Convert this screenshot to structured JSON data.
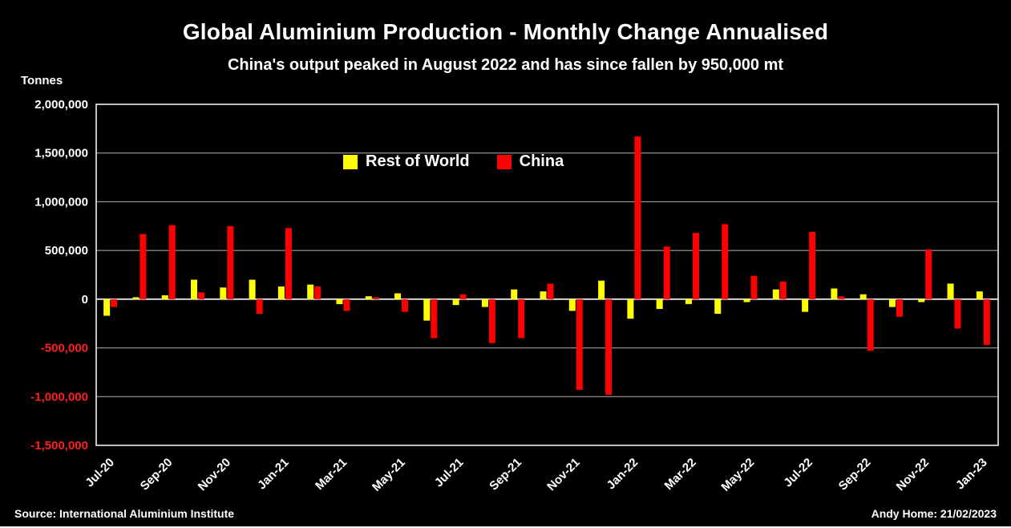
{
  "title": "Global Aluminium Production - Monthly Change Annualised",
  "subtitle": "China's output peaked in August 2022 and has since fallen by 950,000 mt",
  "y_axis_title": "Tonnes",
  "legend": [
    "Rest of World",
    "China"
  ],
  "footer": {
    "source": "Source: International Aluminium Institute",
    "credit": "Andy Home: 21/02/2023"
  },
  "colors": {
    "background": "#000000",
    "text": "#ffffff",
    "negative_tick": "#ff2020",
    "gridline": "#b3b3b3",
    "plot_border": "#ffffff",
    "rest_of_world": "#ffff00",
    "china": "#ff0000"
  },
  "chart_data": {
    "type": "bar",
    "title": "Global Aluminium Production - Monthly Change Annualised",
    "subtitle": "China's output peaked in August 2022 and has since fallen by 950,000 mt",
    "xlabel": "",
    "ylabel": "Tonnes",
    "ylim": [
      -1500000,
      2000000
    ],
    "yticks": [
      2000000,
      1500000,
      1000000,
      500000,
      0,
      -500000,
      -1000000,
      -1500000
    ],
    "grid": true,
    "legend_position": "inside-top-center",
    "categories": [
      "Jul-20",
      "Aug-20",
      "Sep-20",
      "Oct-20",
      "Nov-20",
      "Dec-20",
      "Jan-21",
      "Feb-21",
      "Mar-21",
      "Apr-21",
      "May-21",
      "Jun-21",
      "Jul-21",
      "Aug-21",
      "Sep-21",
      "Oct-21",
      "Nov-21",
      "Dec-21",
      "Jan-22",
      "Feb-22",
      "Mar-22",
      "Apr-22",
      "May-22",
      "Jun-22",
      "Jul-22",
      "Aug-22",
      "Sep-22",
      "Oct-22",
      "Nov-22",
      "Dec-22",
      "Jan-23"
    ],
    "x_tick_labels_shown": [
      "Jul-20",
      "Sep-20",
      "Nov-20",
      "Jan-21",
      "Mar-21",
      "May-21",
      "Jul-21",
      "Sep-21",
      "Nov-21",
      "Jan-22",
      "Mar-22",
      "May-22",
      "Jul-22",
      "Sep-22",
      "Nov-22",
      "Jan-23"
    ],
    "series": [
      {
        "name": "Rest of World",
        "color": "#ffff00",
        "values": [
          -170000,
          20000,
          40000,
          200000,
          120000,
          200000,
          130000,
          150000,
          -50000,
          30000,
          60000,
          -220000,
          -60000,
          -80000,
          100000,
          80000,
          -120000,
          190000,
          -200000,
          -100000,
          -50000,
          -150000,
          -30000,
          100000,
          -130000,
          110000,
          50000,
          -80000,
          -30000,
          160000,
          80000
        ]
      },
      {
        "name": "China",
        "color": "#ff0000",
        "values": [
          -80000,
          670000,
          760000,
          70000,
          750000,
          -150000,
          730000,
          130000,
          -120000,
          20000,
          -130000,
          -400000,
          50000,
          -450000,
          -400000,
          160000,
          -930000,
          -980000,
          1670000,
          540000,
          680000,
          770000,
          240000,
          180000,
          690000,
          30000,
          -530000,
          -180000,
          510000,
          -300000,
          -470000
        ]
      }
    ]
  }
}
